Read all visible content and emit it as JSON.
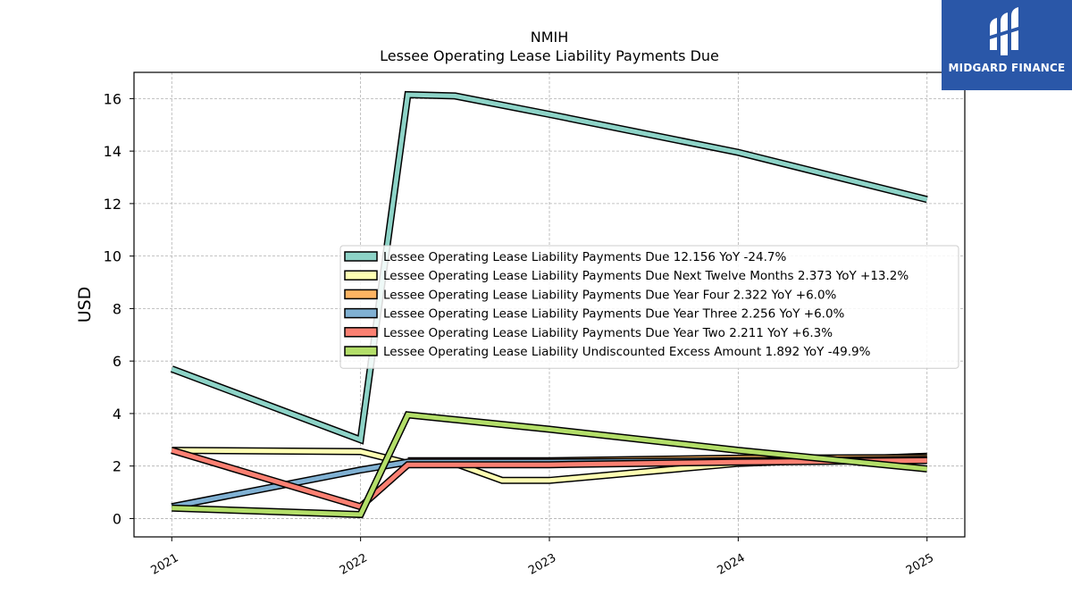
{
  "logo": {
    "text": "MIDGARD FINANCE",
    "bg": "#2a57a8"
  },
  "chart_data": {
    "type": "line",
    "title": "NMIH",
    "subtitle": "Lessee Operating Lease Liability Payments Due",
    "xlabel": "",
    "ylabel": "USD",
    "xlim": [
      2020.8,
      2025.2
    ],
    "ylim": [
      -0.7,
      17.0
    ],
    "xticks": [
      2021,
      2022,
      2023,
      2024,
      2025
    ],
    "xtick_labels": [
      "2021",
      "2022",
      "2023",
      "2024",
      "2025"
    ],
    "yticks": [
      0,
      2,
      4,
      6,
      8,
      10,
      12,
      14,
      16
    ],
    "ytick_labels": [
      "0",
      "2",
      "4",
      "6",
      "8",
      "10",
      "12",
      "14",
      "16"
    ],
    "grid": true,
    "legend_position": "center-right",
    "series": [
      {
        "name": "Lessee Operating Lease Liability Payments Due",
        "legend": "Lessee Operating Lease Liability Payments Due  12.156 YoY -24.7%",
        "color": "#8dd3c7",
        "points": [
          [
            2021,
            5.7
          ],
          [
            2022,
            3.0
          ],
          [
            2022.25,
            16.15
          ],
          [
            2022.5,
            16.1
          ],
          [
            2023,
            15.4
          ],
          [
            2024,
            13.95
          ],
          [
            2025,
            12.156
          ]
        ]
      },
      {
        "name": "Lessee Operating Lease Liability Payments Due Next Twelve Months",
        "legend": "Lessee Operating Lease Liability Payments Due Next Twelve Months  2.373 YoY +13.2%",
        "color": "#ffffb3",
        "points": [
          [
            2021,
            2.6
          ],
          [
            2022,
            2.55
          ],
          [
            2022.25,
            2.1
          ],
          [
            2022.5,
            2.1
          ],
          [
            2022.75,
            1.45
          ],
          [
            2023,
            1.45
          ],
          [
            2024,
            2.1
          ],
          [
            2025,
            2.373
          ]
        ]
      },
      {
        "name": "Lessee Operating Lease Liability Payments Due Year Four",
        "legend": "Lessee Operating Lease Liability Payments Due Year Four  2.322 YoY +6.0%",
        "color": "#fdb462",
        "points": [
          [
            2022.25,
            2.2
          ],
          [
            2023,
            2.2
          ],
          [
            2024,
            2.3
          ],
          [
            2025,
            2.322
          ]
        ]
      },
      {
        "name": "Lessee Operating Lease Liability Payments Due Year Three",
        "legend": "Lessee Operating Lease Liability Payments Due Year Three  2.256 YoY +6.0%",
        "color": "#80b1d3",
        "points": [
          [
            2021,
            0.45
          ],
          [
            2022,
            1.85
          ],
          [
            2022.25,
            2.15
          ],
          [
            2023,
            2.15
          ],
          [
            2024,
            2.2
          ],
          [
            2025,
            2.256
          ]
        ]
      },
      {
        "name": "Lessee Operating Lease Liability Payments Due Year Two",
        "legend": "Lessee Operating Lease Liability Payments Due Year Two  2.211 YoY +6.3%",
        "color": "#fb8072",
        "points": [
          [
            2021,
            2.6
          ],
          [
            2022,
            0.45
          ],
          [
            2022.25,
            2.05
          ],
          [
            2023,
            2.05
          ],
          [
            2024,
            2.15
          ],
          [
            2025,
            2.211
          ]
        ]
      },
      {
        "name": "Lessee Operating Lease Liability Undiscounted Excess Amount",
        "legend": "Lessee Operating Lease Liability Undiscounted Excess Amount  1.892 YoY -49.9%",
        "color": "#b3de69",
        "points": [
          [
            2021,
            0.4
          ],
          [
            2022,
            0.15
          ],
          [
            2022.25,
            3.95
          ],
          [
            2023,
            3.4
          ],
          [
            2024,
            2.6
          ],
          [
            2025,
            1.892
          ]
        ]
      }
    ]
  }
}
